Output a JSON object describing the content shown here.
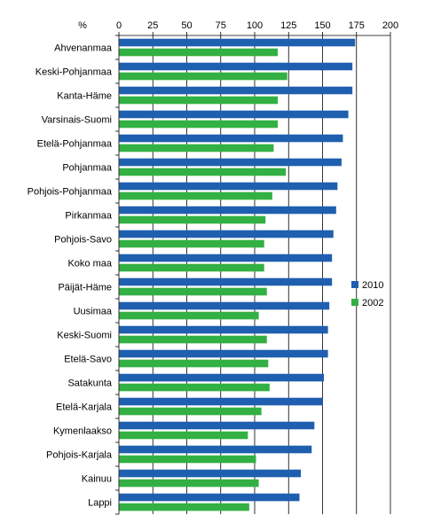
{
  "chart_data": {
    "type": "bar",
    "orientation": "horizontal",
    "unit_label": "%",
    "categories": [
      "Ahvenanmaa",
      "Keski-Pohjanmaa",
      "Kanta-Häme",
      "Varsinais-Suomi",
      "Etelä-Pohjanmaa",
      "Pohjanmaa",
      "Pohjois-Pohjanmaa",
      "Pirkanmaa",
      "Pohjois-Savo",
      "Koko maa",
      "Päijät-Häme",
      "Uusimaa",
      "Keski-Suomi",
      "Etelä-Savo",
      "Satakunta",
      "Etelä-Karjala",
      "Kymenlaakso",
      "Pohjois-Karjala",
      "Kainuu",
      "Lappi"
    ],
    "series": [
      {
        "name": "2010",
        "color": "#1F5FAF",
        "values": [
          174,
          172,
          172,
          169,
          165,
          164,
          161,
          160,
          158,
          157,
          157,
          155,
          154,
          154,
          151,
          150,
          144,
          142,
          134,
          133
        ]
      },
      {
        "name": "2002",
        "color": "#33B043",
        "values": [
          117,
          124,
          117,
          117,
          114,
          123,
          113,
          108,
          107,
          107,
          109,
          103,
          109,
          110,
          111,
          105,
          95,
          101,
          103,
          96
        ]
      }
    ],
    "xlim": [
      0,
      200
    ],
    "xticks": [
      0,
      25,
      50,
      75,
      100,
      125,
      150,
      175,
      200
    ],
    "grid": "vertical",
    "legend_position": "right"
  }
}
